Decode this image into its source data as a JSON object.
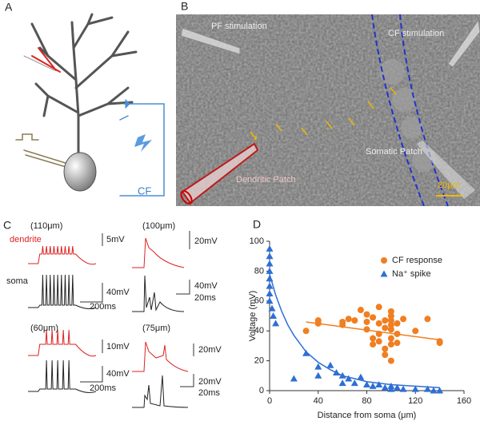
{
  "panels": {
    "a": {
      "label": "A",
      "cf": "CF"
    },
    "b": {
      "label": "B",
      "pf": "PF stimulation",
      "cf": "CF stimulation",
      "dendritic": "Dendritic Patch",
      "somatic": "Somatic Patch",
      "scale": "20μm"
    },
    "c": {
      "label": "C",
      "t1": "(110μm)",
      "dendrite": "dendrite",
      "s1": "5mV",
      "soma": "soma",
      "s2": "40mV",
      "s3": "200ms",
      "t2": "(100μm)",
      "s4": "20mV",
      "s5": "40mV",
      "s6": "20ms",
      "t3": "(60μm)",
      "s7": "10mV",
      "s8": "40mV",
      "s9": "200ms",
      "t4": "(75μm)",
      "s10": "20mV",
      "s11": "20mV",
      "s12": "20ms"
    },
    "d": {
      "label": "D"
    }
  },
  "chart_data": {
    "type": "scatter",
    "xlabel": "Distance from soma (μm)",
    "ylabel": "Voltage (mV)",
    "xlim": [
      0,
      160
    ],
    "xticks": [
      0,
      40,
      80,
      120,
      160
    ],
    "ylim": [
      0,
      100
    ],
    "yticks": [
      0,
      20,
      40,
      60,
      80,
      100
    ],
    "legend": "upper right",
    "series": [
      {
        "name": "CF response",
        "color": "#f07f22",
        "marker": "circle",
        "x": [
          30,
          40,
          40,
          60,
          60,
          65,
          70,
          75,
          80,
          80,
          80,
          85,
          85,
          85,
          90,
          90,
          90,
          90,
          95,
          95,
          95,
          95,
          100,
          100,
          100,
          100,
          100,
          100,
          100,
          100,
          105,
          105,
          105,
          110,
          120,
          130,
          140,
          140
        ],
        "values": [
          40,
          47,
          45,
          46,
          44,
          48,
          47,
          54,
          51,
          46,
          41,
          49,
          35,
          31,
          56,
          45,
          38,
          33,
          47,
          42,
          28,
          24,
          53,
          50,
          47,
          44,
          41,
          35,
          31,
          20,
          45,
          38,
          32,
          48,
          40,
          48,
          32,
          33
        ]
      },
      {
        "name": "Na⁺ spike",
        "color": "#2e6fd4",
        "marker": "triangle",
        "x": [
          0,
          0,
          0,
          0,
          0,
          0,
          0,
          0,
          2,
          3,
          5,
          20,
          30,
          40,
          40,
          50,
          55,
          60,
          60,
          65,
          70,
          75,
          80,
          85,
          90,
          95,
          100,
          100,
          105,
          110,
          120,
          130,
          135,
          140
        ],
        "values": [
          95,
          90,
          85,
          80,
          75,
          70,
          65,
          60,
          55,
          50,
          45,
          8,
          25,
          16,
          10,
          17,
          12,
          10,
          5,
          8,
          5,
          9,
          4,
          3,
          4,
          2,
          3,
          1,
          2,
          1,
          1,
          1,
          0,
          0
        ]
      }
    ],
    "fits": [
      {
        "color": "#f07f22",
        "x": [
          30,
          140
        ],
        "values": [
          46,
          34
        ]
      },
      {
        "color": "#2e6fd4",
        "x": [
          0,
          5,
          10,
          15,
          20,
          30,
          40,
          50,
          60,
          70,
          80,
          100,
          120,
          140
        ],
        "values": [
          78,
          64,
          53,
          44,
          37,
          26,
          19,
          14,
          10,
          8,
          6,
          4,
          3,
          2
        ]
      }
    ]
  }
}
